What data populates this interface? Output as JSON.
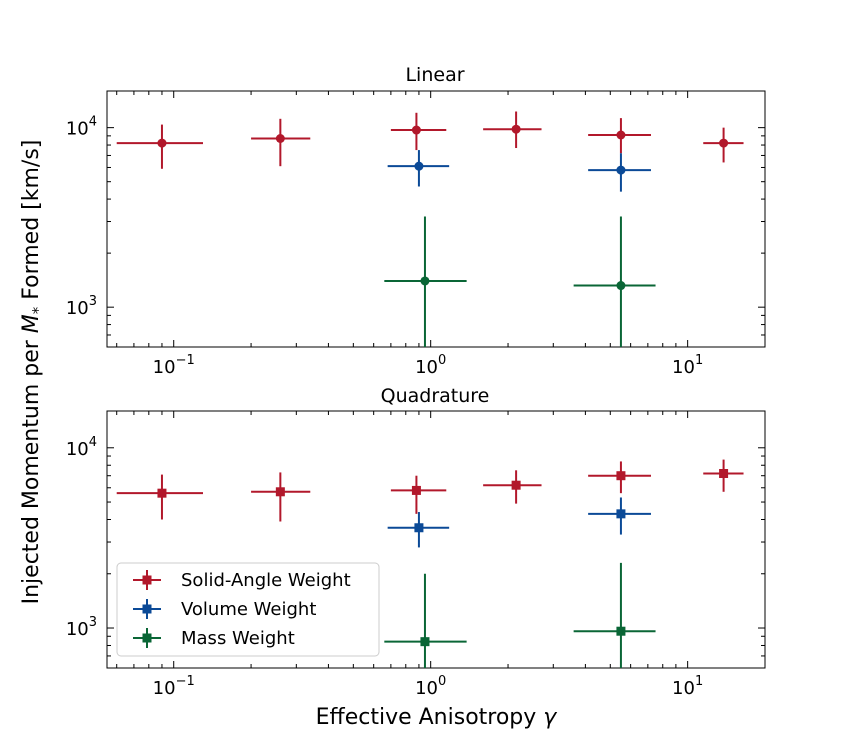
{
  "chart_data": [
    {
      "type": "scatter",
      "title": "Linear",
      "xscale": "log",
      "yscale": "log",
      "xlim": [
        0.055,
        20
      ],
      "ylim": [
        600,
        16000
      ],
      "xticks": [
        {
          "base": "10",
          "exp": "−1",
          "value": 0.1
        },
        {
          "base": "10",
          "exp": "0",
          "value": 1
        },
        {
          "base": "10",
          "exp": "1",
          "value": 10
        }
      ],
      "yticks": [
        {
          "base": "10",
          "exp": "3",
          "value": 1000
        },
        {
          "base": "10",
          "exp": "4",
          "value": 10000
        }
      ],
      "series": [
        {
          "name": "Solid-Angle Weight",
          "color": "#b2182b",
          "marker": "circle",
          "points": [
            {
              "x": 0.09,
              "y": 8200,
              "xlo": 0.06,
              "xhi": 0.13,
              "ylo": 5900,
              "yhi": 10400
            },
            {
              "x": 0.26,
              "y": 8700,
              "xlo": 0.2,
              "xhi": 0.34,
              "ylo": 6100,
              "yhi": 11200
            },
            {
              "x": 0.88,
              "y": 9700,
              "xlo": 0.7,
              "xhi": 1.15,
              "ylo": 7500,
              "yhi": 12100
            },
            {
              "x": 2.15,
              "y": 9800,
              "xlo": 1.6,
              "xhi": 2.7,
              "ylo": 7700,
              "yhi": 12300
            },
            {
              "x": 5.5,
              "y": 9100,
              "xlo": 4.1,
              "xhi": 7.2,
              "ylo": 7200,
              "yhi": 11300
            },
            {
              "x": 13.8,
              "y": 8200,
              "xlo": 11.5,
              "xhi": 16.5,
              "ylo": 6400,
              "yhi": 10000
            }
          ]
        },
        {
          "name": "Volume Weight",
          "color": "#0b4a97",
          "marker": "circle",
          "points": [
            {
              "x": 0.9,
              "y": 6100,
              "xlo": 0.68,
              "xhi": 1.18,
              "ylo": 4700,
              "yhi": 7500
            },
            {
              "x": 5.5,
              "y": 5800,
              "xlo": 4.1,
              "xhi": 7.2,
              "ylo": 4400,
              "yhi": 7200
            }
          ]
        },
        {
          "name": "Mass Weight",
          "color": "#0a6636",
          "marker": "circle",
          "points": [
            {
              "x": 0.95,
              "y": 1400,
              "xlo": 0.66,
              "xhi": 1.38,
              "ylo": 600,
              "yhi": 3200
            },
            {
              "x": 5.5,
              "y": 1320,
              "xlo": 3.6,
              "xhi": 7.5,
              "ylo": 600,
              "yhi": 3200
            }
          ]
        }
      ]
    },
    {
      "type": "scatter",
      "title": "Quadrature",
      "xscale": "log",
      "yscale": "log",
      "xlim": [
        0.055,
        20
      ],
      "ylim": [
        600,
        16000
      ],
      "xticks": [
        {
          "base": "10",
          "exp": "−1",
          "value": 0.1
        },
        {
          "base": "10",
          "exp": "0",
          "value": 1
        },
        {
          "base": "10",
          "exp": "1",
          "value": 10
        }
      ],
      "yticks": [
        {
          "base": "10",
          "exp": "3",
          "value": 1000
        },
        {
          "base": "10",
          "exp": "4",
          "value": 10000
        }
      ],
      "series": [
        {
          "name": "Solid-Angle Weight",
          "color": "#b2182b",
          "marker": "square",
          "points": [
            {
              "x": 0.09,
              "y": 5600,
              "xlo": 0.06,
              "xhi": 0.13,
              "ylo": 4000,
              "yhi": 7100
            },
            {
              "x": 0.26,
              "y": 5700,
              "xlo": 0.2,
              "xhi": 0.34,
              "ylo": 3900,
              "yhi": 7300
            },
            {
              "x": 0.88,
              "y": 5800,
              "xlo": 0.7,
              "xhi": 1.15,
              "ylo": 4300,
              "yhi": 7000
            },
            {
              "x": 2.15,
              "y": 6200,
              "xlo": 1.6,
              "xhi": 2.7,
              "ylo": 4900,
              "yhi": 7500
            },
            {
              "x": 5.5,
              "y": 7000,
              "xlo": 4.1,
              "xhi": 7.2,
              "ylo": 5600,
              "yhi": 8400
            },
            {
              "x": 13.8,
              "y": 7200,
              "xlo": 11.5,
              "xhi": 16.5,
              "ylo": 5700,
              "yhi": 8600
            }
          ]
        },
        {
          "name": "Volume Weight",
          "color": "#0b4a97",
          "marker": "square",
          "points": [
            {
              "x": 0.9,
              "y": 3600,
              "xlo": 0.68,
              "xhi": 1.18,
              "ylo": 2800,
              "yhi": 4400
            },
            {
              "x": 5.5,
              "y": 4300,
              "xlo": 4.1,
              "xhi": 7.2,
              "ylo": 3300,
              "yhi": 5300
            }
          ]
        },
        {
          "name": "Mass Weight",
          "color": "#0a6636",
          "marker": "square",
          "points": [
            {
              "x": 0.95,
              "y": 840,
              "xlo": 0.66,
              "xhi": 1.38,
              "ylo": 600,
              "yhi": 2000
            },
            {
              "x": 5.5,
              "y": 960,
              "xlo": 3.6,
              "xhi": 7.5,
              "ylo": 600,
              "yhi": 2300
            }
          ]
        }
      ]
    }
  ],
  "axes": {
    "xlabel_pre": "Effective Anisotropy ",
    "xlabel_sym": "γ",
    "ylabel_pre": "Injected Momentum per ",
    "ylabel_sym": "M",
    "ylabel_sub": "*",
    "ylabel_post": " Formed [km/s]"
  },
  "legend": {
    "placement": "lower-left of bottom panel",
    "entries": [
      {
        "label": "Solid-Angle Weight",
        "color": "#b2182b"
      },
      {
        "label": "Volume Weight",
        "color": "#0b4a97"
      },
      {
        "label": "Mass Weight",
        "color": "#0a6636"
      }
    ]
  }
}
